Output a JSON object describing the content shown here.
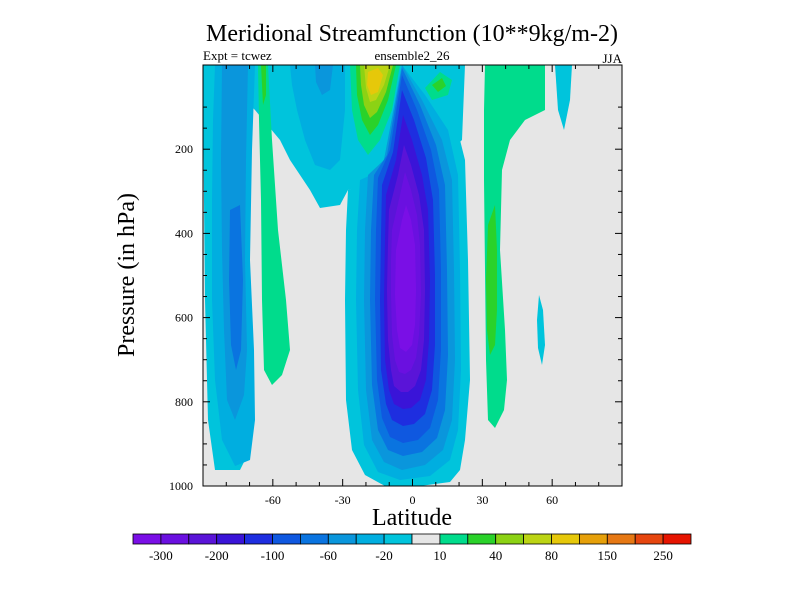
{
  "chart_data": {
    "type": "contour",
    "title": "Meridional Streamfunction (10**9kg/m-2)",
    "subtitle_left": "Expt = tcwez",
    "subtitle_center": "ensemble2_26",
    "subtitle_right": "JJA",
    "xlabel": "Latitude",
    "ylabel": "Pressure (in hPa)",
    "xlim": [
      -90,
      90
    ],
    "ylim": [
      1000,
      0
    ],
    "x_ticks": [
      -60,
      -30,
      0,
      30,
      60
    ],
    "y_ticks": [
      200,
      400,
      600,
      800,
      1000
    ],
    "colorbar": {
      "levels": [
        -300,
        -250,
        -200,
        -150,
        -100,
        -80,
        -60,
        -40,
        -20,
        -10,
        10,
        20,
        40,
        60,
        80,
        100,
        150,
        200,
        250
      ],
      "tick_labels": [
        "-300",
        "-200",
        "-100",
        "-60",
        "-20",
        "10",
        "40",
        "80",
        "150",
        "250"
      ],
      "colors": [
        "#7a0fe6",
        "#6a10e0",
        "#5a14d8",
        "#3a14d8",
        "#1e2ee0",
        "#0f58e0",
        "#0a74e0",
        "#0a96dc",
        "#00aee0",
        "#00c4dc",
        "#e6e6e6",
        "#00dc8c",
        "#2ad22a",
        "#8cd214",
        "#bcd414",
        "#e6c80a",
        "#e6a00a",
        "#e67814",
        "#e6460f",
        "#e61400"
      ]
    },
    "features": [
      {
        "name": "tropical-negative-cell",
        "min_level": -300,
        "lat_range": [
          -10,
          14
        ],
        "pressure_range": [
          15,
          990
        ]
      },
      {
        "name": "southern-negative-cell",
        "min_level": -60,
        "lat_range": [
          -85,
          -45
        ],
        "pressure_range": [
          15,
          970
        ]
      },
      {
        "name": "northern-positive-cell",
        "max_level": 20,
        "lat_range": [
          25,
          55
        ],
        "pressure_range": [
          15,
          870
        ]
      },
      {
        "name": "upper-positive-cell",
        "max_level": 100,
        "lat_range": [
          -25,
          -10
        ],
        "pressure_range": [
          15,
          240
        ]
      }
    ]
  }
}
